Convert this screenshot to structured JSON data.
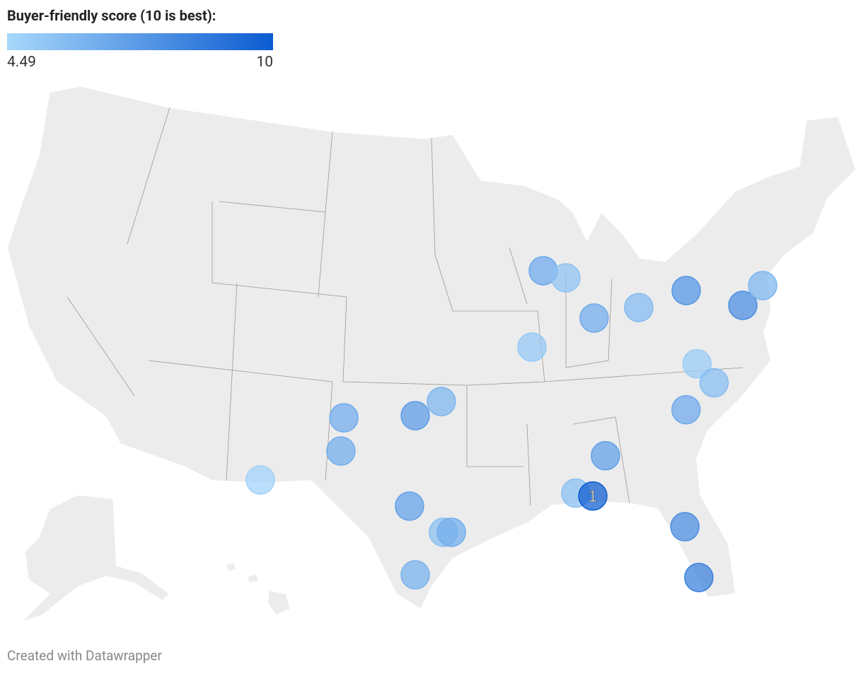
{
  "legend": {
    "title": "Buyer-friendly score (10 is best):",
    "min": 4.49,
    "max": 10,
    "colors": [
      "#a8d8fb",
      "#0b5bd1"
    ]
  },
  "points": [
    {
      "lon": -89.01,
      "lat": 42.35,
      "score": 6.6
    },
    {
      "lon": -87.63,
      "lat": 41.88,
      "score": 5.4
    },
    {
      "lon": -85.91,
      "lat": 39.22,
      "score": 6.5
    },
    {
      "lon": -89.7,
      "lat": 37.3,
      "score": 5.2
    },
    {
      "lon": -83.19,
      "lat": 39.92,
      "score": 5.8
    },
    {
      "lon": -80.3,
      "lat": 41.04,
      "score": 7.5
    },
    {
      "lon": -76.85,
      "lat": 40.06,
      "score": 7.8
    },
    {
      "lon": -75.64,
      "lat": 41.37,
      "score": 6.0
    },
    {
      "lon": -79.64,
      "lat": 36.2,
      "score": 5.0
    },
    {
      "lon": -78.6,
      "lat": 34.94,
      "score": 5.7
    },
    {
      "lon": -80.31,
      "lat": 33.16,
      "score": 6.6
    },
    {
      "lon": -85.22,
      "lat": 30.12,
      "score": 7.0
    },
    {
      "lon": -87.03,
      "lat": 27.65,
      "score": 5.6
    },
    {
      "lon": -85.99,
      "lat": 27.46,
      "score": 10,
      "label": "1"
    },
    {
      "lon": -80.38,
      "lat": 25.43,
      "score": 7.8
    },
    {
      "lon": -79.53,
      "lat": 22.07,
      "score": 8.4
    },
    {
      "lon": -95.22,
      "lat": 33.7,
      "score": 6.0
    },
    {
      "lon": -96.81,
      "lat": 32.77,
      "score": 7.2
    },
    {
      "lon": -101.16,
      "lat": 32.63,
      "score": 6.5
    },
    {
      "lon": -101.34,
      "lat": 30.43,
      "score": 6.4
    },
    {
      "lon": -106.25,
      "lat": 28.52,
      "score": 4.8
    },
    {
      "lon": -97.16,
      "lat": 26.79,
      "score": 6.9
    },
    {
      "lon": -95.09,
      "lat": 25.06,
      "score": 5.6
    },
    {
      "lon": -94.61,
      "lat": 25.06,
      "score": 6.4
    },
    {
      "lon": -96.81,
      "lat": 22.25,
      "score": 6.2
    }
  ],
  "footer": "Created with Datawrapper"
}
